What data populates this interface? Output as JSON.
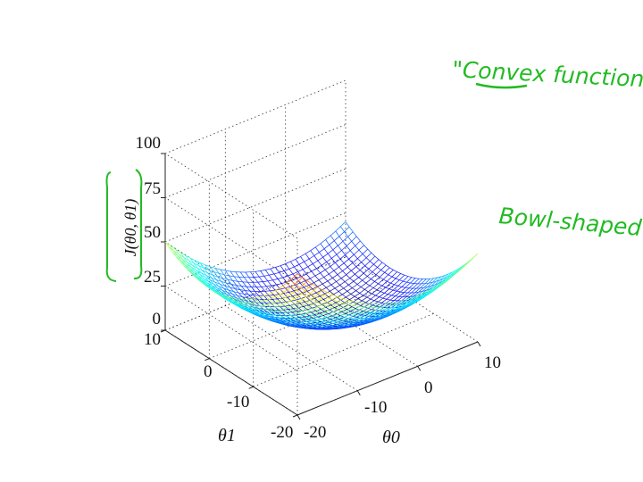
{
  "chart_data": {
    "type": "surface",
    "z_function": "theta0^2/10 + theta1^2/10",
    "x_axis": {
      "label": "θ0",
      "range": [
        -20,
        10
      ],
      "ticks": [
        -20,
        -10,
        0,
        10
      ]
    },
    "y_axis": {
      "label": "θ1",
      "range": [
        -20,
        10
      ],
      "ticks": [
        -20,
        -10,
        0,
        10
      ]
    },
    "z_axis": {
      "label": "J(θ0, θ1)",
      "range": [
        0,
        100
      ],
      "ticks": [
        0,
        25,
        50,
        75,
        100
      ]
    },
    "grid": true,
    "colormap": "jet"
  },
  "annotations": {
    "convex_note": "\"Convex function\"",
    "bowl_note": "Bowl-shaped"
  },
  "colors": {
    "annotation_ink": "#22bb22"
  }
}
